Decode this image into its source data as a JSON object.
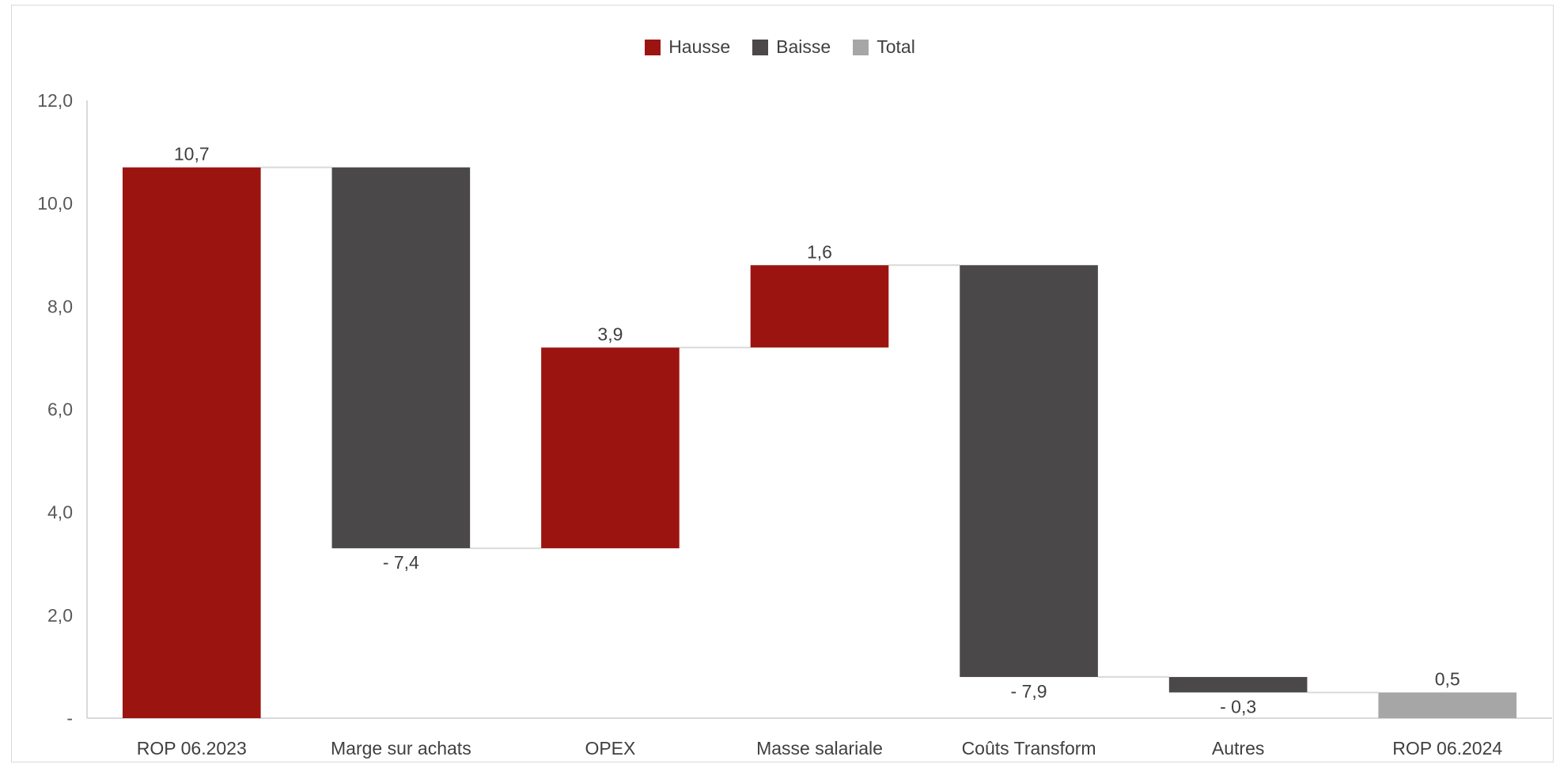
{
  "chart_data": {
    "type": "bar",
    "subtype": "waterfall",
    "title": "",
    "xlabel": "",
    "ylabel": "",
    "ylim": [
      0,
      12
    ],
    "y_ticks": [
      {
        "value": 0,
        "label": "-"
      },
      {
        "value": 2,
        "label": "2,0"
      },
      {
        "value": 4,
        "label": "4,0"
      },
      {
        "value": 6,
        "label": "6,0"
      },
      {
        "value": 8,
        "label": "8,0"
      },
      {
        "value": 10,
        "label": "10,0"
      },
      {
        "value": 12,
        "label": "12,0"
      }
    ],
    "grid": false,
    "legend_position": "top-center",
    "legend": [
      {
        "name": "Hausse",
        "color": "#9c1410"
      },
      {
        "name": "Baisse",
        "color": "#4a4849"
      },
      {
        "name": "Total",
        "color": "#a6a6a6"
      }
    ],
    "categories": [
      "ROP 06.2023",
      "Marge sur achats",
      "OPEX",
      "Masse salariale",
      "Coûts Transform",
      "Autres",
      "ROP 06.2024"
    ],
    "bars": [
      {
        "category": "ROP 06.2023",
        "kind": "Hausse",
        "start": 0,
        "end": 10.7,
        "label": "10,7"
      },
      {
        "category": "Marge sur achats",
        "kind": "Baisse",
        "start": 10.7,
        "end": 3.3,
        "label": "- 7,4"
      },
      {
        "category": "OPEX",
        "kind": "Hausse",
        "start": 3.3,
        "end": 7.2,
        "label": "3,9"
      },
      {
        "category": "Masse salariale",
        "kind": "Hausse",
        "start": 7.2,
        "end": 8.8,
        "label": "1,6"
      },
      {
        "category": "Coûts Transform",
        "kind": "Baisse",
        "start": 8.8,
        "end": 0.8,
        "label": "- 7,9"
      },
      {
        "category": "Autres",
        "kind": "Baisse",
        "start": 0.8,
        "end": 0.5,
        "label": "- 0,3"
      },
      {
        "category": "ROP 06.2024",
        "kind": "Total",
        "start": 0,
        "end": 0.5,
        "label": "0,5"
      }
    ],
    "connector_color": "#d9d9d9"
  }
}
